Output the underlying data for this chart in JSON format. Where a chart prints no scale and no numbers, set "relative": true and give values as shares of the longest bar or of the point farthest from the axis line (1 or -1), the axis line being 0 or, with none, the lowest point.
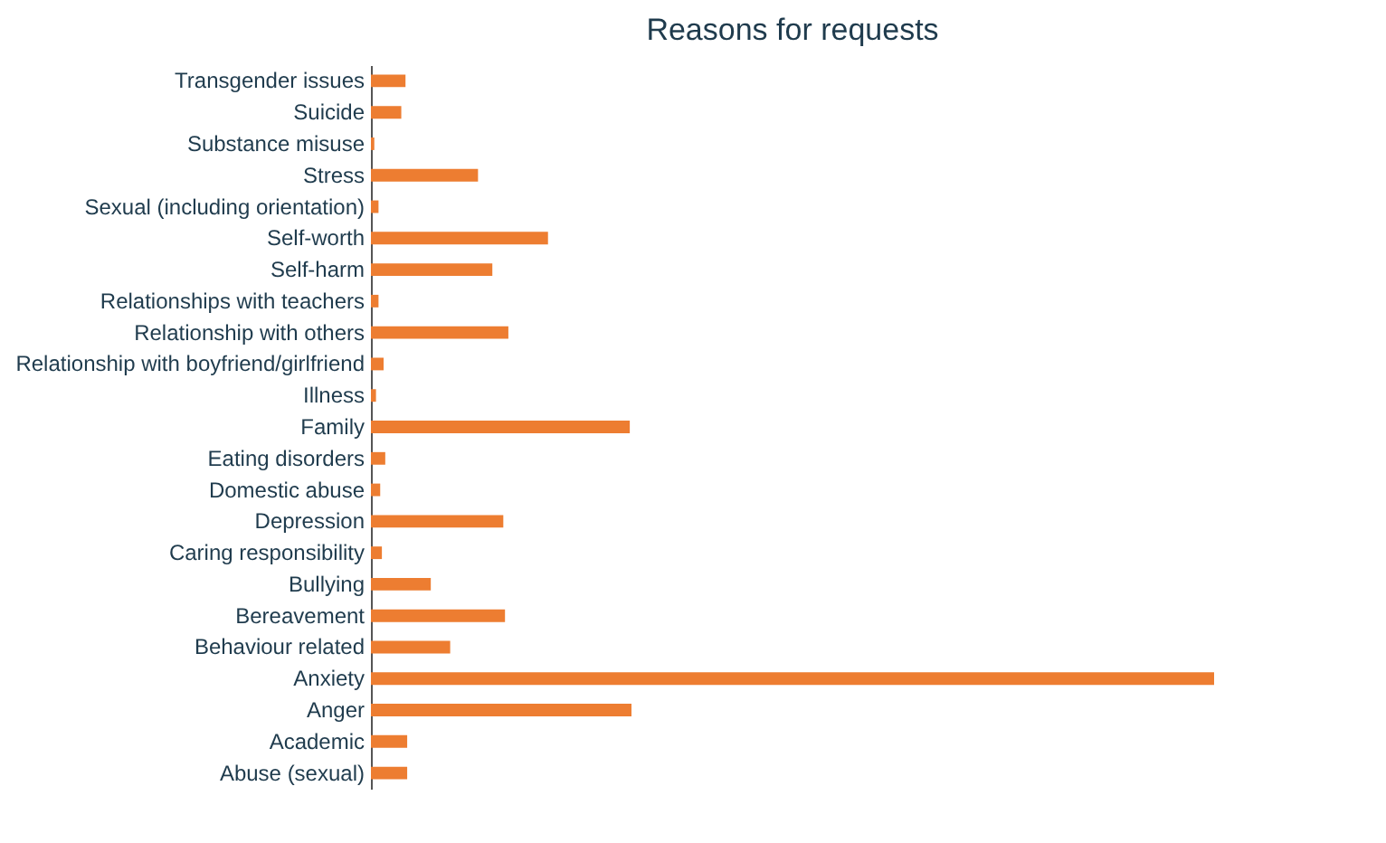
{
  "chart_data": {
    "type": "bar",
    "title": "Reasons for requests",
    "orientation": "horizontal",
    "relative": true,
    "color": "#ed7d31",
    "categories": [
      "Transgender issues",
      "Suicide",
      "Substance misuse",
      "Stress",
      "Sexual (including orientation)",
      "Self-worth",
      "Self-harm",
      "Relationships with teachers",
      "Relationship with others",
      "Relationship with boyfriend/girlfriend",
      "Illness",
      "Family",
      "Eating disorders",
      "Domestic abuse",
      "Depression",
      "Caring responsibility",
      "Bullying",
      "Bereavement",
      "Behaviour related",
      "Anxiety",
      "Anger",
      "Academic",
      "Abuse (sexual)"
    ],
    "values": [
      0.041,
      0.036,
      0.004,
      0.127,
      0.009,
      0.21,
      0.144,
      0.009,
      0.163,
      0.015,
      0.006,
      0.307,
      0.017,
      0.011,
      0.157,
      0.013,
      0.071,
      0.159,
      0.094,
      1,
      0.309,
      0.043,
      0.043
    ]
  }
}
